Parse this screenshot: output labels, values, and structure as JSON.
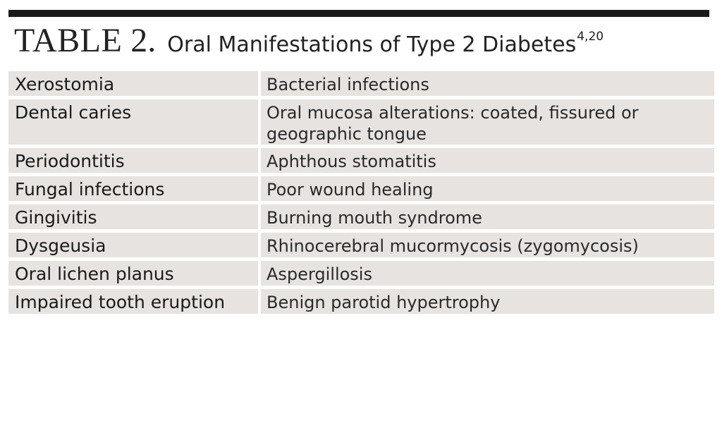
{
  "header": {
    "label": "TABLE",
    "number": "2.",
    "title": "Oral Manifestations of Type 2 Diabetes",
    "citation": "4,20"
  },
  "rows": [
    {
      "left": "Xerostomia",
      "right": "Bacterial infections",
      "height": 53
    },
    {
      "left": "Dental caries",
      "right": "Oral mucosa alterations: coated, fissured or geographic tongue",
      "height": 90
    },
    {
      "left": "Periodontitis",
      "right": "Aphthous stomatitis",
      "height": 56
    },
    {
      "left": "Fungal infections",
      "right": "Poor wound healing",
      "height": 57
    },
    {
      "left": "Gingivitis",
      "right": "Burning mouth syndrome",
      "height": 56
    },
    {
      "left": "Dysgeusia",
      "right": "Rhinocerebral mucormycosis (zygomycosis)",
      "height": 57
    },
    {
      "left": "Oral lichen planus",
      "right": "Aspergillosis",
      "height": 57
    },
    {
      "left": "Impaired tooth eruption",
      "right": "Benign parotid hypertrophy",
      "height": 60
    }
  ],
  "colors": {
    "cell_background": "#e6e3e0",
    "rule": "#1a1a1a",
    "text": "#1a1a1a"
  }
}
